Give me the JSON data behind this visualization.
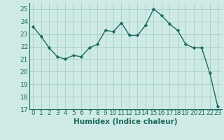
{
  "x": [
    0,
    1,
    2,
    3,
    4,
    5,
    6,
    7,
    8,
    9,
    10,
    11,
    12,
    13,
    14,
    15,
    16,
    17,
    18,
    19,
    20,
    21,
    22,
    23
  ],
  "y": [
    23.6,
    22.8,
    21.9,
    21.2,
    21.0,
    21.3,
    21.2,
    21.9,
    22.2,
    23.3,
    23.2,
    23.9,
    22.9,
    22.9,
    23.7,
    25.0,
    24.5,
    23.8,
    23.3,
    22.2,
    21.9,
    21.9,
    19.9,
    17.2
  ],
  "line_color": "#1a6b5a",
  "marker": "D",
  "marker_size": 2.2,
  "bg_color": "#ceeae6",
  "grid_color": "#a8ccc8",
  "xlabel": "Humidex (Indice chaleur)",
  "xlim": [
    -0.5,
    23.5
  ],
  "ylim": [
    17,
    25.5
  ],
  "yticks": [
    17,
    18,
    19,
    20,
    21,
    22,
    23,
    24,
    25
  ],
  "xticks": [
    0,
    1,
    2,
    3,
    4,
    5,
    6,
    7,
    8,
    9,
    10,
    11,
    12,
    13,
    14,
    15,
    16,
    17,
    18,
    19,
    20,
    21,
    22,
    23
  ],
  "xlabel_fontsize": 7.5,
  "tick_fontsize": 6.5,
  "line_width": 1.0
}
